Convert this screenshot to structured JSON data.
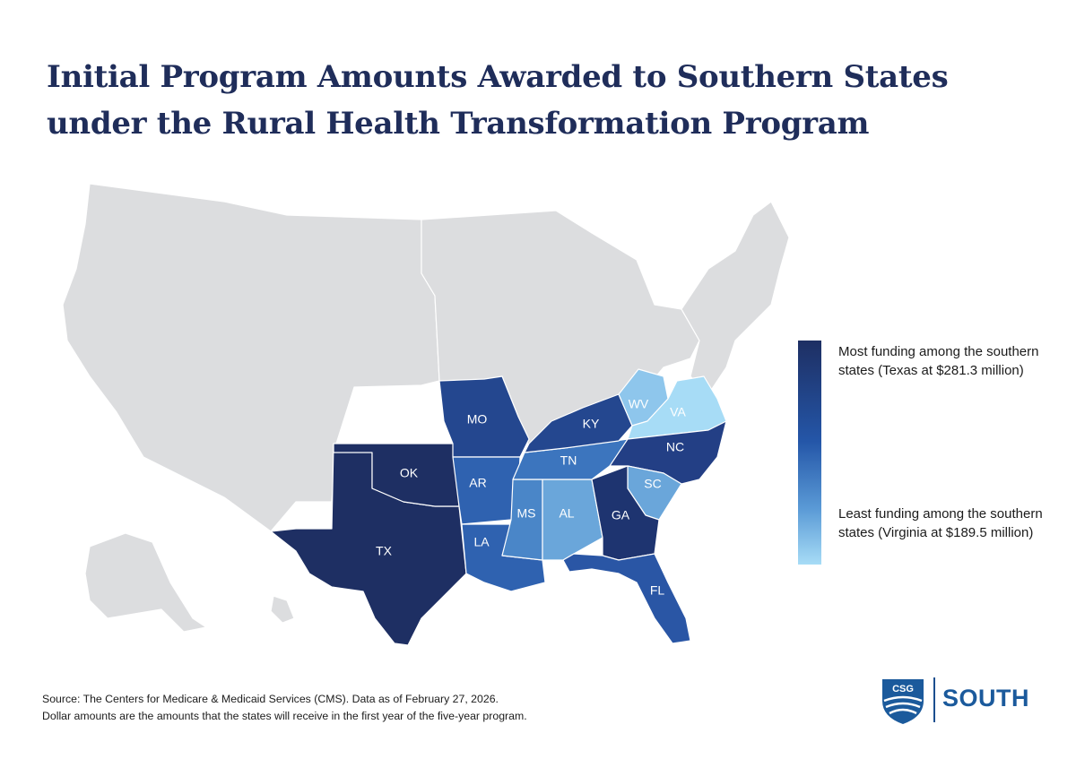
{
  "title": "Initial Program Amounts Awarded to Southern States under the Rural Health Transformation Program",
  "legend": {
    "high_label": "Most funding among the southern states (Texas at $281.3 million)",
    "low_label": "Least funding among the southern states (Virginia at $189.5 million)",
    "high_color": "#1e2f63",
    "low_color": "#a7dcf6"
  },
  "colors": {
    "base_state": "#dcdddf",
    "border": "#ffffff"
  },
  "states": [
    {
      "abbr": "TX",
      "color": "#1e2f63"
    },
    {
      "abbr": "OK",
      "color": "#1e2f63"
    },
    {
      "abbr": "MO",
      "color": "#24478f"
    },
    {
      "abbr": "AR",
      "color": "#2f62b0"
    },
    {
      "abbr": "LA",
      "color": "#2f62b0"
    },
    {
      "abbr": "MS",
      "color": "#4a86c8"
    },
    {
      "abbr": "AL",
      "color": "#6aa6da"
    },
    {
      "abbr": "TN",
      "color": "#3c75be"
    },
    {
      "abbr": "KY",
      "color": "#24478f"
    },
    {
      "abbr": "WV",
      "color": "#8ec6ec"
    },
    {
      "abbr": "VA",
      "color": "#a7dcf6"
    },
    {
      "abbr": "NC",
      "color": "#233f85"
    },
    {
      "abbr": "SC",
      "color": "#6aa6da"
    },
    {
      "abbr": "GA",
      "color": "#1e3470"
    },
    {
      "abbr": "FL",
      "color": "#2a56a5"
    }
  ],
  "source": "Source: The Centers for Medicare & Medicaid Services (CMS). Data as of February 27, 2026.",
  "note": "Dollar amounts are the amounts that the states will receive in the first year of the five-year program.",
  "logo": {
    "mark": "CSG",
    "text": "SOUTH",
    "color": "#1b5a9c"
  }
}
